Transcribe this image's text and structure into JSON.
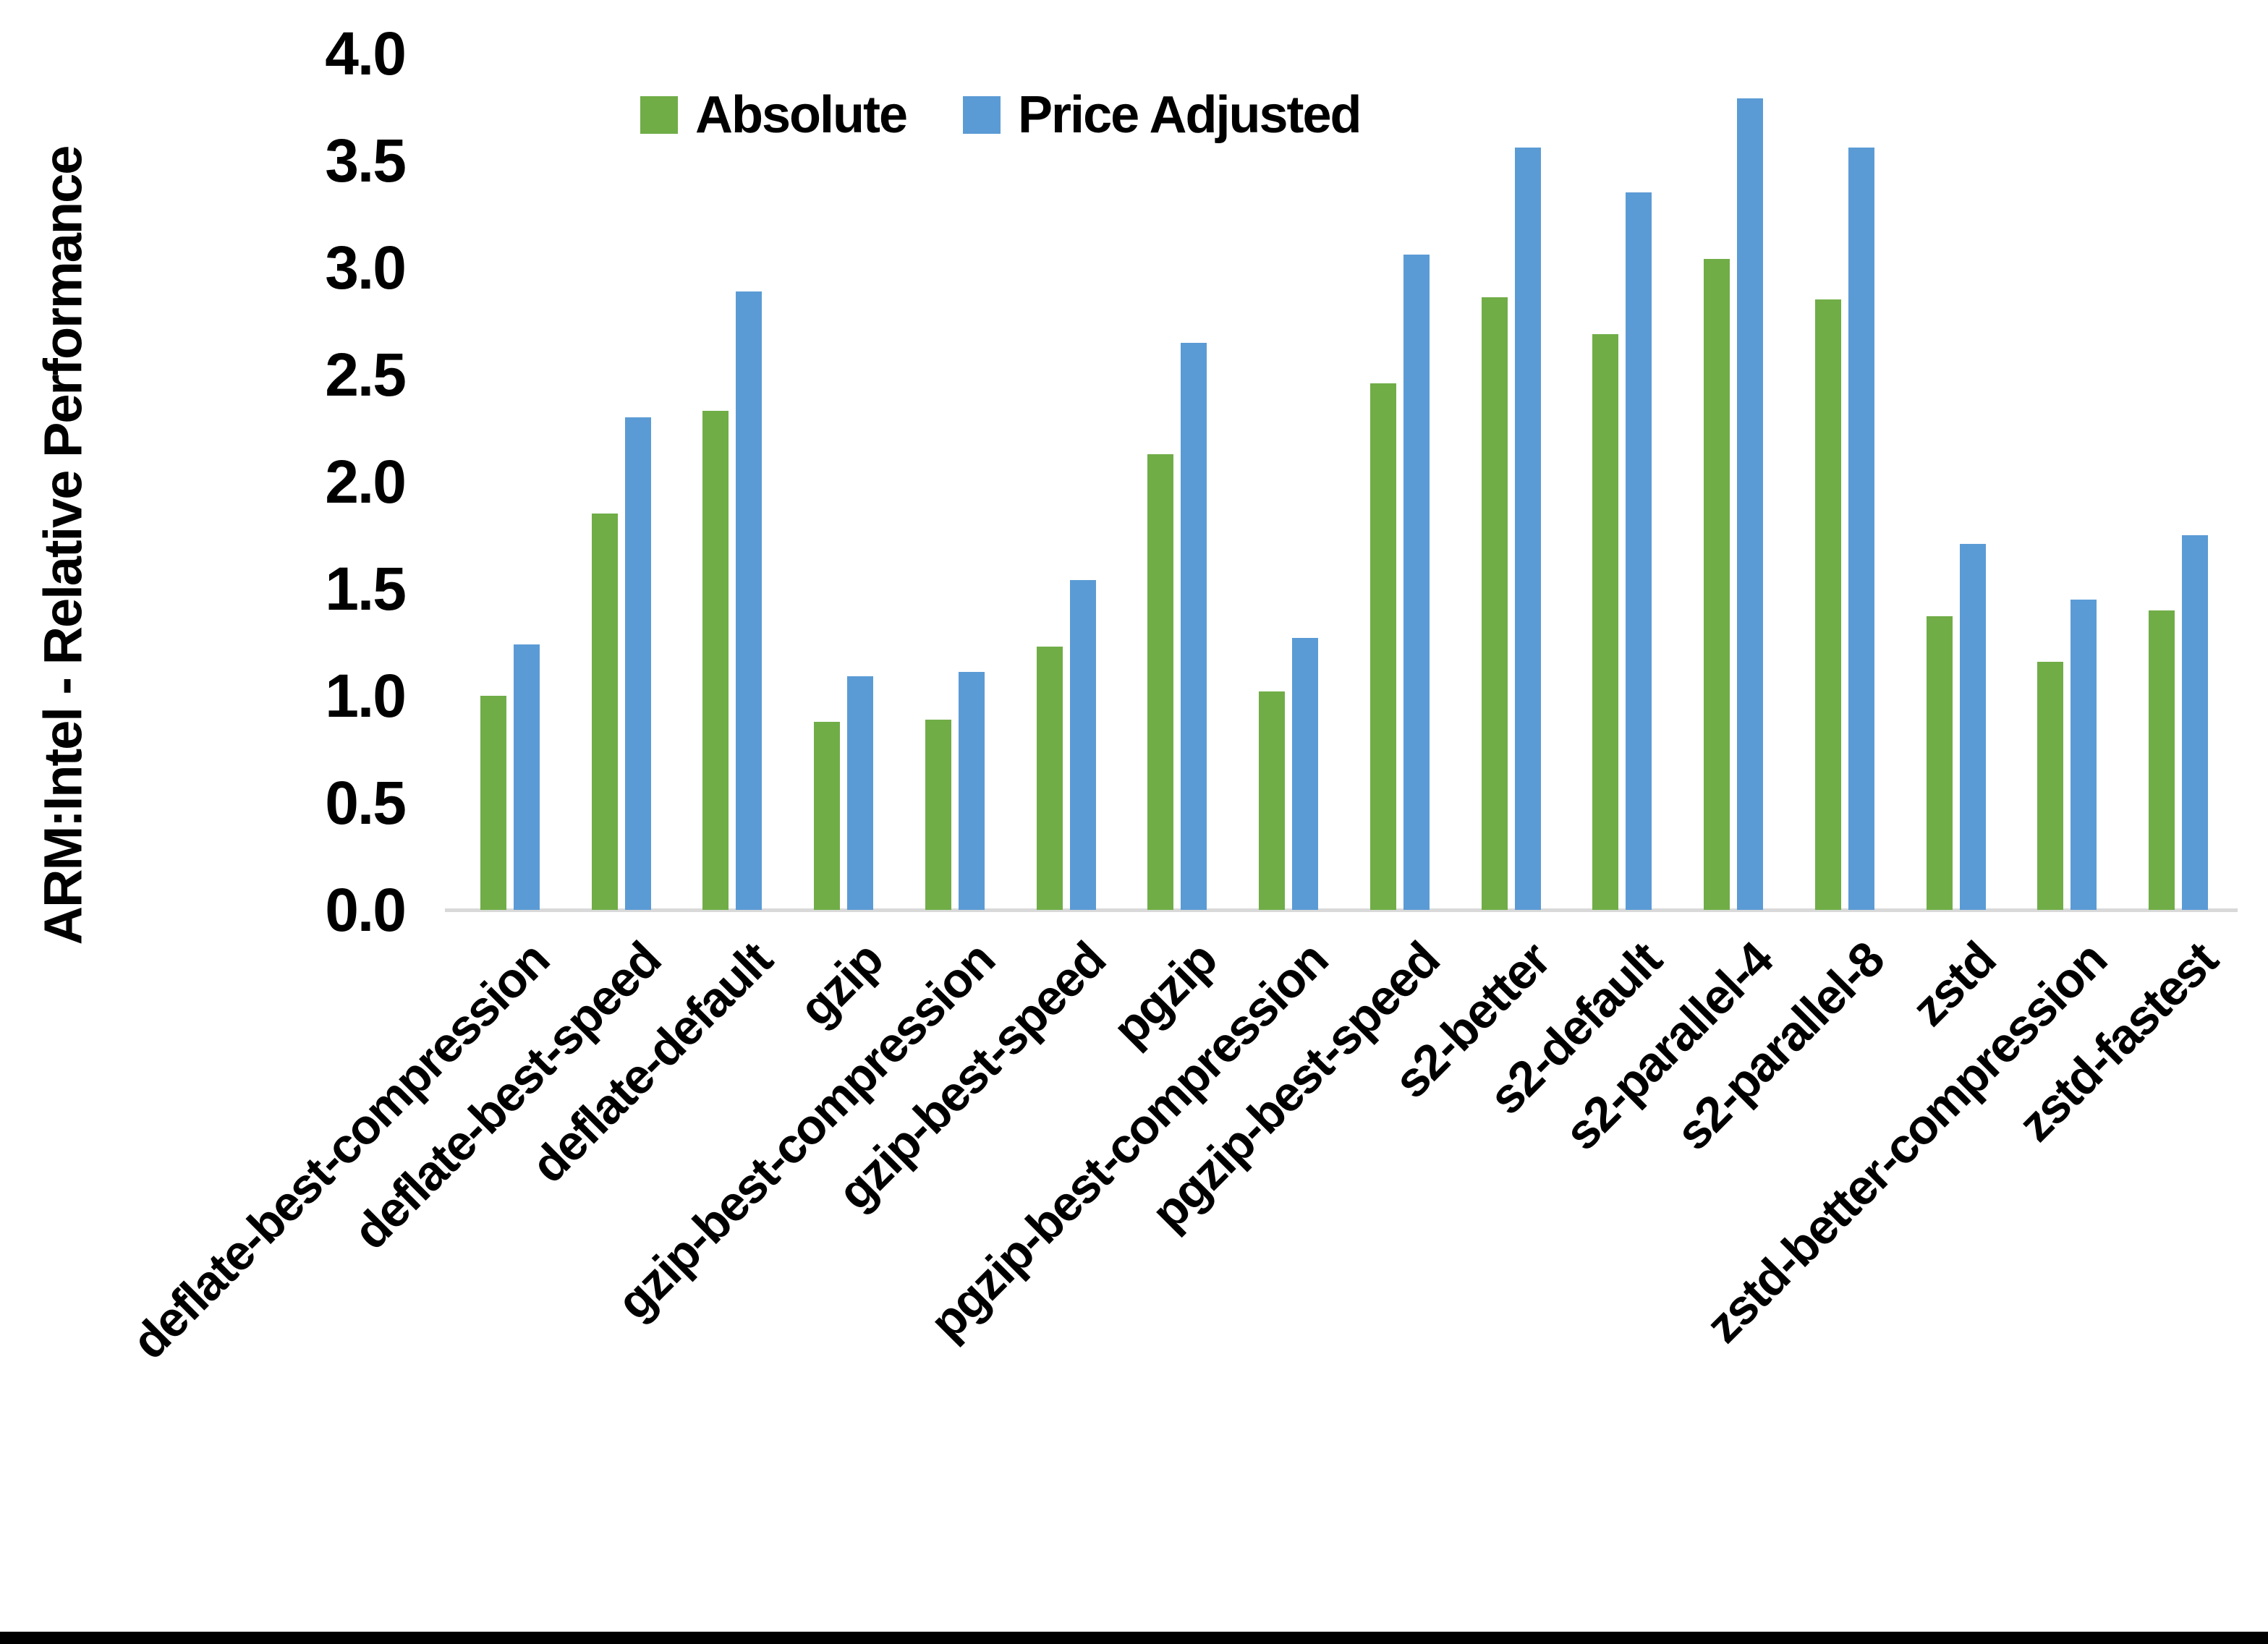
{
  "chart_data": {
    "type": "bar",
    "title": "",
    "ylabel": "ARM:Intel - Relative Performance",
    "xlabel": "",
    "ylim": [
      0.0,
      4.0
    ],
    "ytick_labels": [
      "4.0",
      "3.5",
      "3.0",
      "2.5",
      "2.0",
      "1.5",
      "1.0",
      "0.5",
      "0.0"
    ],
    "grid": false,
    "legend_position": "top-center",
    "categories": [
      "deflate-best-compression",
      "deflate-best-speed",
      "deflate-default",
      "gzip",
      "gzip-best-compression",
      "gzip-best-speed",
      "pgzip",
      "pgzip-best-compression",
      "pgzip-best-speed",
      "s2-better",
      "s2-default",
      "s2-parallel-4",
      "s2-parallel-8",
      "zstd",
      "zstd-better-compression",
      "zstd-fastest"
    ],
    "series": [
      {
        "name": "Absolute",
        "color": "#70AD47",
        "values": [
          1.0,
          1.85,
          2.33,
          0.88,
          0.89,
          1.23,
          2.13,
          1.02,
          2.46,
          2.86,
          2.69,
          3.04,
          2.85,
          1.37,
          1.16,
          1.4
        ]
      },
      {
        "name": "Price Adjusted",
        "color": "#5B9BD5",
        "values": [
          1.24,
          2.3,
          2.89,
          1.09,
          1.11,
          1.54,
          2.65,
          1.27,
          3.06,
          3.56,
          3.35,
          3.79,
          3.56,
          1.71,
          1.45,
          1.75
        ]
      }
    ],
    "axis_line_color": "#d9d9d9",
    "text_color": "#000000"
  }
}
